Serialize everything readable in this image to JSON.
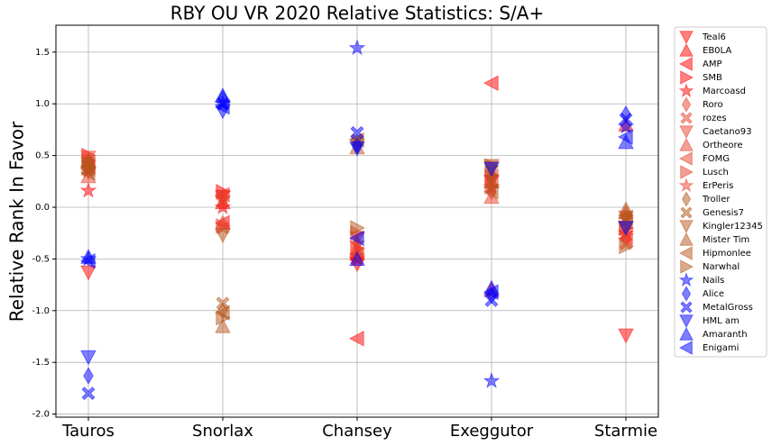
{
  "chart_data": {
    "type": "scatter",
    "title": "RBY OU VR 2020 Relative Statistics: S/A+",
    "y_label": "Relative Rank In Favor",
    "categories": [
      "Tauros",
      "Snorlax",
      "Chansey",
      "Exeggutor",
      "Starmie"
    ],
    "ylim": [
      -2.03,
      1.76
    ],
    "yticks": [
      {
        "value": -2,
        "label": "-2.0"
      },
      {
        "value": -1.5,
        "label": "-1.5"
      },
      {
        "value": -1,
        "label": "-1.0"
      },
      {
        "value": -0.5,
        "label": "-0.5"
      },
      {
        "value": 0,
        "label": "0.0"
      },
      {
        "value": 0.5,
        "label": "0.5"
      },
      {
        "value": 1,
        "label": "1.0"
      },
      {
        "value": 1.5,
        "label": "1.5"
      }
    ],
    "grid": true,
    "legend": "outside-right",
    "alpha": 0.5,
    "series": [
      {
        "name": "Teal6",
        "color": "#ff0000",
        "marker": "v",
        "values": [
          -0.63,
          0.1,
          -0.55,
          0.25,
          -1.24
        ]
      },
      {
        "name": "EB0LA",
        "color": "#ff0000",
        "marker": "^",
        "values": [
          0.45,
          0.05,
          -0.45,
          -0.8,
          0.8
        ]
      },
      {
        "name": "AMP",
        "color": "#ff0000",
        "marker": "<",
        "values": [
          0.4,
          -0.15,
          -1.27,
          1.2,
          -0.3
        ]
      },
      {
        "name": "SMB",
        "color": "#ff0000",
        "marker": ">",
        "values": [
          0.5,
          0.15,
          -0.4,
          0.3,
          -0.2
        ]
      },
      {
        "name": "Marcoasd",
        "color": "#ff0000",
        "marker": "*",
        "values": [
          0.16,
          0.0,
          -0.5,
          0.2,
          -0.25
        ]
      },
      {
        "name": "Roro",
        "color": "#e8402a",
        "marker": "d",
        "values": [
          0.35,
          0.1,
          -0.35,
          0.15,
          -0.3
        ]
      },
      {
        "name": "rozes",
        "color": "#e8402a",
        "marker": "X",
        "values": [
          0.42,
          -0.2,
          -0.5,
          0.25,
          -0.35
        ]
      },
      {
        "name": "Caetano93",
        "color": "#e8402a",
        "marker": "v",
        "values": [
          0.48,
          0.05,
          -0.3,
          0.38,
          -0.1
        ]
      },
      {
        "name": "Ortheore",
        "color": "#e8402a",
        "marker": "^",
        "values": [
          0.3,
          -0.15,
          -0.4,
          0.1,
          -0.05
        ]
      },
      {
        "name": "FOMG",
        "color": "#e8402a",
        "marker": "<",
        "values": [
          0.38,
          0.12,
          -0.45,
          0.3,
          -0.15
        ]
      },
      {
        "name": "Lusch",
        "color": "#e8402a",
        "marker": ">",
        "values": [
          0.45,
          -0.18,
          -0.25,
          0.2,
          -0.2
        ]
      },
      {
        "name": "ErPeris",
        "color": "#e8402a",
        "marker": "*",
        "values": [
          0.35,
          0.08,
          -0.35,
          0.18,
          -0.28
        ]
      },
      {
        "name": "Troller",
        "color": "#b5561c",
        "marker": "d",
        "values": [
          0.4,
          -1.0,
          0.62,
          0.3,
          -0.1
        ]
      },
      {
        "name": "Genesis7",
        "color": "#b5561c",
        "marker": "X",
        "values": [
          0.36,
          -0.93,
          0.65,
          0.35,
          -0.12
        ]
      },
      {
        "name": "Kingler12345",
        "color": "#b5561c",
        "marker": "v",
        "values": [
          0.42,
          -0.27,
          0.6,
          0.4,
          -0.2
        ]
      },
      {
        "name": "Mister Tim",
        "color": "#b5561c",
        "marker": "^",
        "values": [
          0.45,
          -1.15,
          0.58,
          0.25,
          -0.02
        ]
      },
      {
        "name": "Hipmonlee",
        "color": "#b5561c",
        "marker": "<",
        "values": [
          0.33,
          -1.02,
          0.65,
          0.15,
          -0.1
        ]
      },
      {
        "name": "Narwhal",
        "color": "#b5561c",
        "marker": ">",
        "values": [
          0.38,
          -1.07,
          -0.2,
          0.4,
          -0.38
        ]
      },
      {
        "name": "Nails",
        "color": "#0000ff",
        "marker": "*",
        "values": [
          -0.5,
          1.0,
          1.54,
          -1.68,
          0.78
        ]
      },
      {
        "name": "Alice",
        "color": "#0000ff",
        "marker": "d",
        "values": [
          -1.63,
          1.05,
          0.6,
          -0.85,
          0.9
        ]
      },
      {
        "name": "MetalGross",
        "color": "#0000ff",
        "marker": "X",
        "values": [
          -1.8,
          1.0,
          0.72,
          -0.9,
          0.85
        ]
      },
      {
        "name": "HML am",
        "color": "#0000ff",
        "marker": "v",
        "values": [
          -1.45,
          0.93,
          0.57,
          0.37,
          -0.2
        ]
      },
      {
        "name": "Amaranth",
        "color": "#0000ff",
        "marker": "^",
        "values": [
          -0.48,
          1.08,
          -0.5,
          -0.78,
          0.63
        ]
      },
      {
        "name": "Enigami",
        "color": "#0000ff",
        "marker": "<",
        "values": [
          -0.52,
          0.97,
          -0.3,
          -0.82,
          0.68
        ]
      }
    ]
  }
}
